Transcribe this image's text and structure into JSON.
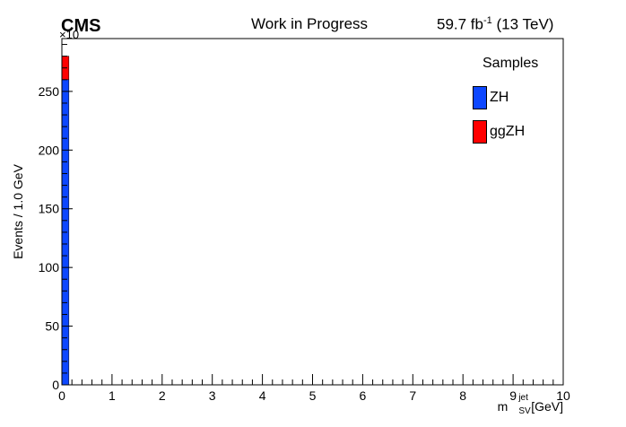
{
  "header": {
    "experiment": "CMS",
    "status": "Work in Progress",
    "lumi_value": "59.7 fb",
    "lumi_exp": "-1",
    "energy": " (13 TeV)"
  },
  "colors": {
    "ZH": "#0d47ff",
    "ggZH": "#ff0000"
  },
  "chart_data": {
    "type": "bar",
    "stacked": true,
    "xlabel": "m",
    "xlabel_sup": "jet",
    "xlabel_sub": "SV",
    "xlabel_unit": " [GeV]",
    "ylabel": "Events / 1.0 GeV",
    "y_multiplier": "×10",
    "xlim": [
      0,
      10
    ],
    "ylim": [
      0,
      295
    ],
    "x_ticks": [
      "0",
      "1",
      "2",
      "3",
      "4",
      "5",
      "6",
      "7",
      "8",
      "9",
      "10"
    ],
    "y_ticks": [
      "0",
      "50",
      "100",
      "150",
      "200",
      "250"
    ],
    "bins": [
      [
        0,
        0.14
      ]
    ],
    "series": [
      {
        "name": "ZH",
        "values": [
          260
        ]
      },
      {
        "name": "ggZH",
        "values": [
          20
        ]
      }
    ],
    "legend": {
      "title": "Samples",
      "position": "top-right"
    }
  }
}
